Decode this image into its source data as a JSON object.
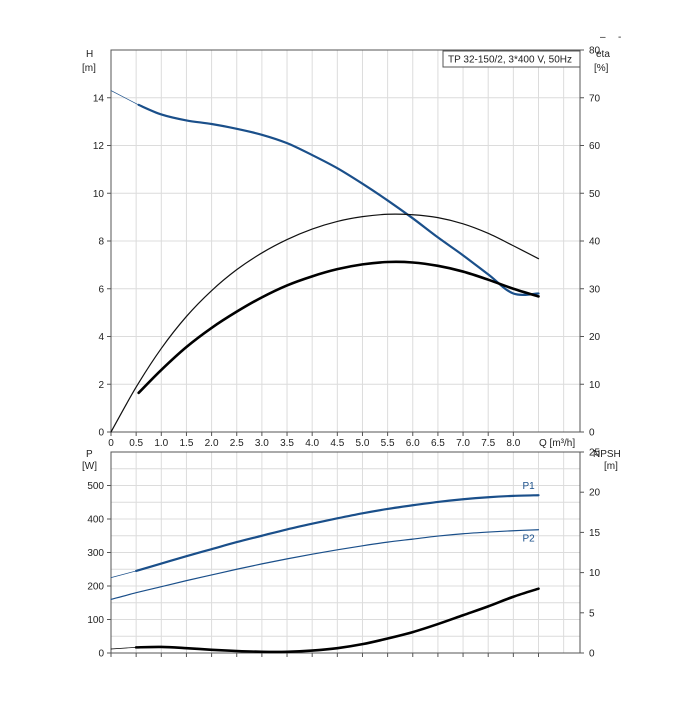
{
  "chart_data": [
    {
      "type": "line",
      "legend_text": "TP 32-150/2, 3*400 V, 50Hz",
      "x_unit": "Q [m³/h]",
      "xlim": [
        0,
        8.5
      ],
      "x_ticks": [
        "0",
        "0.5",
        "1.0",
        "1.5",
        "2.0",
        "2.5",
        "3.0",
        "3.5",
        "4.0",
        "4.5",
        "5.0",
        "5.5",
        "6.0",
        "6.5",
        "7.0",
        "7.5",
        "8.0"
      ],
      "y_left": {
        "label": "H",
        "unit": "[m]",
        "lim": [
          0,
          16
        ],
        "ticks": [
          "0",
          "2",
          "4",
          "6",
          "8",
          "10",
          "12",
          "14"
        ]
      },
      "y_right": {
        "label": "eta",
        "unit": "[%]",
        "lim": [
          0,
          80
        ],
        "ticks": [
          "0",
          "10",
          "20",
          "30",
          "40",
          "50",
          "60",
          "70",
          "80"
        ]
      },
      "series": [
        {
          "axis": "left",
          "color": "#1a4f8a",
          "width": 2.2,
          "x": [
            0.55,
            1.0,
            1.5,
            2.0,
            2.5,
            3.0,
            3.5,
            4.0,
            4.5,
            5.0,
            5.5,
            6.0,
            6.5,
            7.0,
            7.5,
            8.0,
            8.5
          ],
          "y": [
            13.7,
            13.3,
            13.05,
            12.9,
            12.7,
            12.45,
            12.1,
            11.6,
            11.05,
            10.4,
            9.7,
            8.95,
            8.15,
            7.4,
            6.6,
            5.8,
            5.8
          ]
        },
        {
          "axis": "left",
          "color": "#1a4f8a",
          "width": 0.7,
          "x": [
            0.0,
            0.55
          ],
          "y": [
            14.3,
            13.7
          ]
        },
        {
          "axis": "right",
          "color": "#111111",
          "width": 1.2,
          "x": [
            0.0,
            0.5,
            1.0,
            1.5,
            2.0,
            2.5,
            3.0,
            3.5,
            4.0,
            4.5,
            5.0,
            5.5,
            6.0,
            6.5,
            7.0,
            7.5,
            8.0,
            8.5
          ],
          "y": [
            0.0,
            9.4,
            17.5,
            24.2,
            29.6,
            34.0,
            37.5,
            40.3,
            42.5,
            44.1,
            45.1,
            45.6,
            45.5,
            44.9,
            43.6,
            41.6,
            39.0,
            36.3
          ]
        },
        {
          "axis": "right",
          "color": "#000000",
          "width": 2.6,
          "x": [
            0.55,
            1.0,
            1.5,
            2.0,
            2.5,
            3.0,
            3.5,
            4.0,
            4.5,
            5.0,
            5.5,
            6.0,
            6.5,
            7.0,
            7.5,
            8.0,
            8.5
          ],
          "y": [
            8.2,
            13.0,
            17.8,
            21.8,
            25.2,
            28.2,
            30.7,
            32.6,
            34.1,
            35.1,
            35.6,
            35.5,
            34.8,
            33.6,
            31.9,
            30.0,
            28.4
          ]
        }
      ]
    },
    {
      "type": "line",
      "x_unit": "Q [m³/h]",
      "xlim": [
        0,
        8.5
      ],
      "y_left": {
        "label": "P",
        "unit": "[W]",
        "lim": [
          0,
          600
        ],
        "ticks": [
          "0",
          "100",
          "200",
          "300",
          "400",
          "500"
        ]
      },
      "y_right": {
        "label": "NPSH",
        "unit": "[m]",
        "lim": [
          0,
          25
        ],
        "ticks": [
          "0",
          "5",
          "10",
          "15",
          "20",
          "25"
        ]
      },
      "series": [
        {
          "name": "P1",
          "axis": "left",
          "color": "#1a4f8a",
          "width": 2.2,
          "x": [
            0.5,
            1.0,
            1.5,
            2.0,
            2.5,
            3.0,
            3.5,
            4.0,
            4.5,
            5.0,
            5.5,
            6.0,
            6.5,
            7.0,
            7.5,
            8.0,
            8.5
          ],
          "y": [
            245,
            267,
            289,
            310,
            331,
            350,
            369,
            386,
            402,
            417,
            430,
            441,
            451,
            459,
            465,
            469,
            471
          ]
        },
        {
          "axis": "left",
          "color": "#1a4f8a",
          "width": 0.7,
          "x": [
            0.0,
            0.5
          ],
          "y": [
            225,
            245
          ]
        },
        {
          "name": "P2",
          "axis": "left",
          "color": "#1a4f8a",
          "width": 1.2,
          "x": [
            0.0,
            0.5,
            1.0,
            1.5,
            2.0,
            2.5,
            3.0,
            3.5,
            4.0,
            4.5,
            5.0,
            5.5,
            6.0,
            6.5,
            7.0,
            7.5,
            8.0,
            8.5
          ],
          "y": [
            160,
            180,
            198,
            216,
            233,
            250,
            266,
            281,
            295,
            308,
            320,
            331,
            340,
            349,
            356,
            361,
            365,
            368
          ]
        },
        {
          "axis": "right",
          "color": "#000000",
          "width": 2.6,
          "x": [
            0.5,
            1.0,
            1.5,
            2.0,
            2.5,
            3.0,
            3.5,
            4.0,
            4.5,
            5.0,
            5.5,
            6.0,
            6.5,
            7.0,
            7.5,
            8.0,
            8.5
          ],
          "y": [
            0.7,
            0.75,
            0.6,
            0.4,
            0.25,
            0.15,
            0.15,
            0.3,
            0.6,
            1.1,
            1.8,
            2.6,
            3.6,
            4.7,
            5.8,
            7.0,
            8.0
          ]
        },
        {
          "axis": "right",
          "color": "#000000",
          "width": 0.7,
          "x": [
            0.0,
            0.5
          ],
          "y": [
            0.5,
            0.7
          ]
        }
      ]
    }
  ],
  "window_controls": {
    "minimize_glyph": "–",
    "more_glyph": "-"
  }
}
